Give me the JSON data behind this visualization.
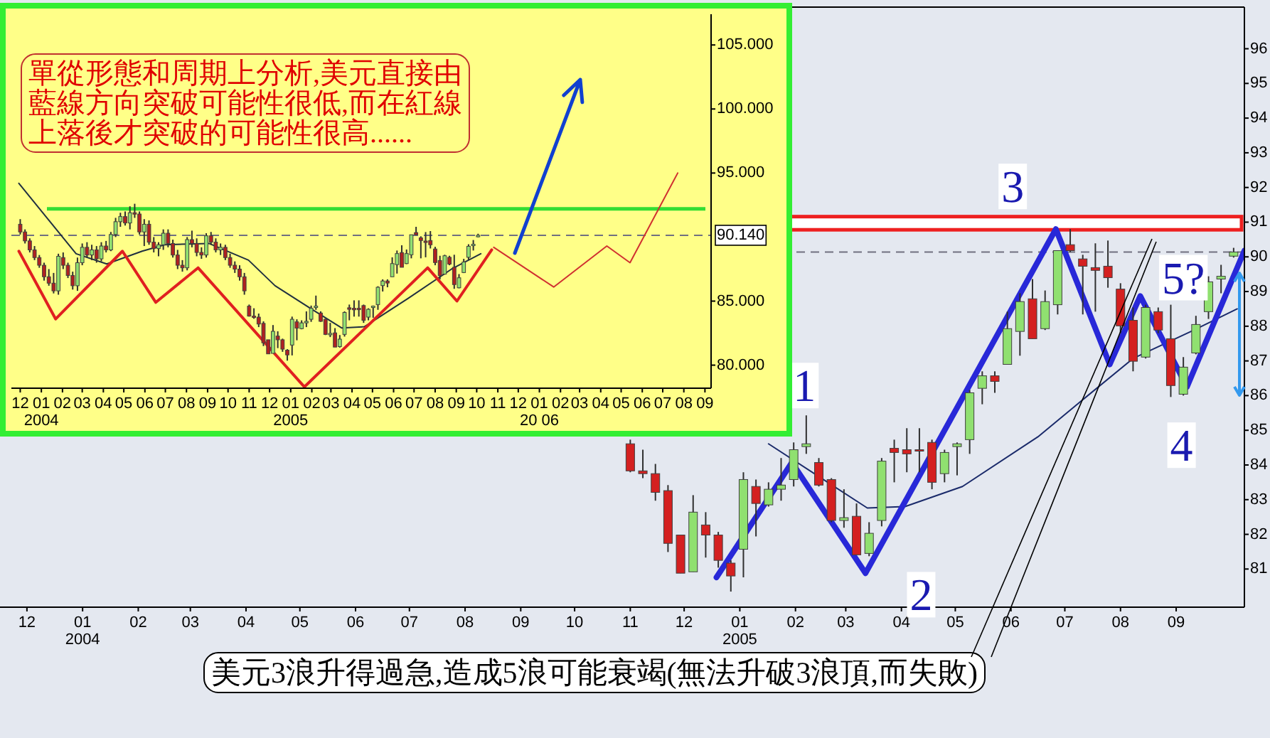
{
  "chart_data": [
    {
      "type": "candlestick",
      "x": [
        "2004-11-01",
        "2004-11-08",
        "2004-11-15",
        "2004-11-22",
        "2004-11-29",
        "2004-12-06",
        "2004-12-13",
        "2004-12-20",
        "2004-12-27",
        "2005-01-03",
        "2005-01-10",
        "2005-01-17",
        "2005-01-24",
        "2005-01-31",
        "2005-02-07",
        "2005-02-14",
        "2005-02-21",
        "2005-02-28",
        "2005-03-07",
        "2005-03-14",
        "2005-03-21",
        "2005-03-28",
        "2005-04-04",
        "2005-04-11",
        "2005-04-18",
        "2005-04-25",
        "2005-05-02",
        "2005-05-09",
        "2005-05-16",
        "2005-05-23",
        "2005-05-30",
        "2005-06-06",
        "2005-06-13",
        "2005-06-20",
        "2005-06-27",
        "2005-07-04",
        "2005-07-11",
        "2005-07-18",
        "2005-07-25",
        "2005-08-01",
        "2005-08-08",
        "2005-08-15",
        "2005-08-22",
        "2005-08-29",
        "2005-09-05",
        "2005-09-12",
        "2005-09-19",
        "2005-09-26",
        "2005-10-03"
      ],
      "ohlc": [
        [
          84.61,
          84.73,
          83.79,
          83.83
        ],
        [
          83.83,
          84.44,
          83.62,
          83.75
        ],
        [
          83.75,
          84.03,
          82.97,
          83.21
        ],
        [
          83.26,
          83.42,
          81.49,
          81.74
        ],
        [
          81.98,
          81.98,
          80.88,
          80.88
        ],
        [
          80.92,
          83.13,
          80.92,
          82.64
        ],
        [
          82.27,
          82.64,
          81.33,
          81.98
        ],
        [
          81.98,
          82.07,
          81.04,
          81.25
        ],
        [
          81.17,
          81.25,
          80.35,
          80.8
        ],
        [
          81.57,
          83.79,
          80.76,
          83.58
        ],
        [
          83.38,
          83.58,
          81.94,
          82.89
        ],
        [
          82.85,
          83.5,
          82.8,
          83.3
        ],
        [
          83.3,
          84.2,
          82.97,
          83.42
        ],
        [
          83.58,
          84.65,
          83.38,
          84.44
        ],
        [
          84.53,
          85.43,
          84.32,
          84.61
        ],
        [
          84.07,
          84.2,
          83.38,
          83.42
        ],
        [
          83.58,
          83.62,
          82.35,
          82.4
        ],
        [
          82.4,
          83.3,
          82.19,
          82.48
        ],
        [
          82.52,
          82.89,
          81.41,
          81.41
        ],
        [
          81.45,
          82.35,
          81.37,
          82.03
        ],
        [
          82.4,
          84.2,
          82.23,
          84.11
        ],
        [
          84.48,
          84.73,
          83.5,
          84.36
        ],
        [
          84.44,
          85.06,
          83.79,
          84.32
        ],
        [
          84.44,
          85.06,
          83.79,
          84.4
        ],
        [
          84.65,
          84.73,
          83.3,
          83.5
        ],
        [
          83.75,
          84.44,
          83.5,
          84.36
        ],
        [
          84.53,
          84.65,
          83.7,
          84.61
        ],
        [
          84.73,
          86.16,
          84.32,
          86.08
        ],
        [
          86.21,
          86.7,
          85.75,
          86.57
        ],
        [
          86.57,
          86.7,
          86.08,
          86.41
        ],
        [
          86.9,
          88.42,
          86.9,
          87.93
        ],
        [
          87.85,
          88.95,
          87.15,
          88.71
        ],
        [
          88.79,
          89.36,
          87.64,
          87.64
        ],
        [
          87.93,
          89.03,
          87.89,
          88.71
        ],
        [
          88.62,
          90.18,
          88.34,
          90.18
        ],
        [
          90.35,
          90.8,
          90.14,
          90.18
        ],
        [
          89.94,
          90.06,
          88.34,
          89.73
        ],
        [
          89.69,
          90.39,
          88.42,
          89.61
        ],
        [
          89.73,
          90.47,
          89.11,
          89.4
        ],
        [
          89.07,
          89.24,
          87.8,
          88.01
        ],
        [
          88.17,
          88.54,
          86.7,
          86.99
        ],
        [
          87.11,
          88.62,
          87.07,
          88.54
        ],
        [
          88.42,
          88.54,
          87.8,
          87.89
        ],
        [
          87.64,
          88.62,
          85.96,
          86.29
        ],
        [
          86.04,
          87.11,
          86.0,
          86.82
        ],
        [
          87.23,
          88.3,
          87.19,
          88.05
        ],
        [
          88.42,
          89.44,
          88.21,
          89.28
        ],
        [
          89.36,
          89.77,
          88.95,
          89.44
        ],
        [
          90.02,
          90.26,
          89.98,
          90.14
        ]
      ],
      "series": [
        {
          "type": "line",
          "color": "#1a2a6a",
          "x": [
            "2005-01-17",
            "2005-02-13",
            "2005-03-13",
            "2005-04-03",
            "2005-05-05",
            "2005-06-16",
            "2005-07-10",
            "2005-08-08",
            "2005-09-11",
            "2005-10-05"
          ],
          "values": [
            84.61,
            83.7,
            82.76,
            82.8,
            83.38,
            84.81,
            85.84,
            87.07,
            87.89,
            88.5
          ]
        },
        {
          "type": "line",
          "color": "#2828d8",
          "x": [
            "2004-12-19",
            "2005-01-30",
            "2005-03-12",
            "2005-06-26",
            "2005-07-26",
            "2005-08-12",
            "2005-09-07",
            "2005-10-09"
          ],
          "values": [
            80.76,
            84.07,
            80.88,
            90.8,
            86.9,
            88.87,
            86.25,
            90.18
          ]
        }
      ],
      "xlim": [
        "2003-11-16",
        "2005-10-09"
      ],
      "ylim": [
        79.9,
        97.2
      ],
      "xticks": [
        {
          "value": "2003-12-01",
          "label": "12"
        },
        {
          "value": "2004-01-01",
          "label": "01\n2004"
        },
        {
          "value": "2004-02-01",
          "label": "02"
        },
        {
          "value": "2004-03-01",
          "label": "03"
        },
        {
          "value": "2004-04-01",
          "label": "04"
        },
        {
          "value": "2004-05-01",
          "label": "05"
        },
        {
          "value": "2004-06-01",
          "label": "06"
        },
        {
          "value": "2004-07-01",
          "label": "07"
        },
        {
          "value": "2004-08-01",
          "label": "08"
        },
        {
          "value": "2004-09-01",
          "label": "09"
        },
        {
          "value": "2004-10-01",
          "label": "10"
        },
        {
          "value": "2004-11-01",
          "label": "11"
        },
        {
          "value": "2004-12-01",
          "label": "12"
        },
        {
          "value": "2005-01-01",
          "label": "01\n2005"
        },
        {
          "value": "2005-02-01",
          "label": "02"
        },
        {
          "value": "2005-03-01",
          "label": "03"
        },
        {
          "value": "2005-04-01",
          "label": "04"
        },
        {
          "value": "2005-05-01",
          "label": "05"
        },
        {
          "value": "2005-06-01",
          "label": "06"
        },
        {
          "value": "2005-07-01",
          "label": "07"
        },
        {
          "value": "2005-08-01",
          "label": "08"
        },
        {
          "value": "2005-09-01",
          "label": "09"
        }
      ],
      "yticks": [
        96,
        95,
        94,
        93,
        92,
        91,
        90,
        89,
        88,
        87,
        86,
        85,
        84,
        83,
        82,
        81
      ],
      "ref_lines": [
        {
          "axis": "y",
          "value": 90.14,
          "color": "#707080",
          "line_style": "dashed"
        }
      ],
      "bands": [
        {
          "axis": "y",
          "from": 90.78,
          "to": 91.16,
          "color": "#ee2020"
        }
      ],
      "annotations": [
        {
          "text": "1",
          "x": "2005-02-06",
          "y": 86.29
        },
        {
          "text": "2",
          "x": "2005-04-12",
          "y": 80.26
        },
        {
          "text": "3",
          "x": "2005-06-02",
          "y": 92.03
        },
        {
          "text": "4",
          "x": "2005-09-04",
          "y": 84.57
        },
        {
          "text": "5?",
          "x": "2005-09-05",
          "y": 89.4
        },
        "美元3浪升得過急,造成5浪可能衰竭(無法升破3浪頂,而失敗)"
      ]
    },
    {
      "type": "candlestick",
      "x": [
        "2003-12-01",
        "2003-12-08",
        "2003-12-15",
        "2003-12-22",
        "2003-12-29",
        "2004-01-05",
        "2004-01-12",
        "2004-01-19",
        "2004-01-26",
        "2004-02-02",
        "2004-02-09",
        "2004-02-16",
        "2004-02-23",
        "2004-03-01",
        "2004-03-08",
        "2004-03-15",
        "2004-03-22",
        "2004-03-29",
        "2004-04-05",
        "2004-04-12",
        "2004-04-19",
        "2004-04-26",
        "2004-05-03",
        "2004-05-10",
        "2004-05-17",
        "2004-05-24",
        "2004-05-31",
        "2004-06-07",
        "2004-06-14",
        "2004-06-21",
        "2004-06-28",
        "2004-07-05",
        "2004-07-12",
        "2004-07-19",
        "2004-07-26",
        "2004-08-02",
        "2004-08-09",
        "2004-08-16",
        "2004-08-23",
        "2004-08-30",
        "2004-09-06",
        "2004-09-13",
        "2004-09-20",
        "2004-09-27",
        "2004-10-04",
        "2004-10-11",
        "2004-10-18",
        "2004-10-25",
        "2004-11-01",
        "2004-11-08",
        "2004-11-15",
        "2004-11-22",
        "2004-11-29",
        "2004-12-06",
        "2004-12-13",
        "2004-12-20",
        "2004-12-27",
        "2005-01-03",
        "2005-01-10",
        "2005-01-17",
        "2005-01-24",
        "2005-01-31",
        "2005-02-07",
        "2005-02-14",
        "2005-02-21",
        "2005-02-28",
        "2005-03-07",
        "2005-03-14",
        "2005-03-21",
        "2005-03-28",
        "2005-04-04",
        "2005-04-11",
        "2005-04-18",
        "2005-04-25",
        "2005-05-02",
        "2005-05-09",
        "2005-05-16",
        "2005-05-23",
        "2005-05-30",
        "2005-06-06",
        "2005-06-13",
        "2005-06-20",
        "2005-06-27",
        "2005-07-04",
        "2005-07-11",
        "2005-07-18",
        "2005-07-25",
        "2005-08-01",
        "2005-08-08",
        "2005-08-15",
        "2005-08-22",
        "2005-08-29",
        "2005-09-05",
        "2005-09-12",
        "2005-09-19",
        "2005-09-26",
        "2005-10-03"
      ],
      "ohlc": [
        [
          91.0,
          91.4,
          90.2,
          90.4
        ],
        [
          90.4,
          90.6,
          89.5,
          89.7
        ],
        [
          89.7,
          89.9,
          88.8,
          89.0
        ],
        [
          89.0,
          89.3,
          88.2,
          88.4
        ],
        [
          88.4,
          88.6,
          87.6,
          87.8
        ],
        [
          87.8,
          88.0,
          86.6,
          86.9
        ],
        [
          86.9,
          87.5,
          86.2,
          86.4
        ],
        [
          86.4,
          87.2,
          85.6,
          85.8
        ],
        [
          85.8,
          88.7,
          85.5,
          88.5
        ],
        [
          88.4,
          88.8,
          87.5,
          87.8
        ],
        [
          87.8,
          88.0,
          86.8,
          87.0
        ],
        [
          87.0,
          87.3,
          85.9,
          86.2
        ],
        [
          86.2,
          88.4,
          85.8,
          88.0
        ],
        [
          88.0,
          89.5,
          87.8,
          89.2
        ],
        [
          89.2,
          89.6,
          88.4,
          88.6
        ],
        [
          88.6,
          89.4,
          88.2,
          89.0
        ],
        [
          89.0,
          89.3,
          88.0,
          88.3
        ],
        [
          88.3,
          89.6,
          88.1,
          89.3
        ],
        [
          89.3,
          89.7,
          88.8,
          89.0
        ],
        [
          89.0,
          90.4,
          88.9,
          90.2
        ],
        [
          90.2,
          91.5,
          90.0,
          91.2
        ],
        [
          91.2,
          91.9,
          90.8,
          91.6
        ],
        [
          91.6,
          92.0,
          90.9,
          91.1
        ],
        [
          91.1,
          92.4,
          90.6,
          91.9
        ],
        [
          91.9,
          92.6,
          91.5,
          91.8
        ],
        [
          91.8,
          92.0,
          90.2,
          90.4
        ],
        [
          90.4,
          91.4,
          89.3,
          91.0
        ],
        [
          91.0,
          91.3,
          89.4,
          89.6
        ],
        [
          89.6,
          90.0,
          88.8,
          89.1
        ],
        [
          89.1,
          89.6,
          88.5,
          89.4
        ],
        [
          89.4,
          90.6,
          89.0,
          90.3
        ],
        [
          90.3,
          90.6,
          89.2,
          89.5
        ],
        [
          89.5,
          89.8,
          88.4,
          88.6
        ],
        [
          88.6,
          89.0,
          87.5,
          87.8
        ],
        [
          87.8,
          88.2,
          87.3,
          87.6
        ],
        [
          87.6,
          90.0,
          87.4,
          89.8
        ],
        [
          89.8,
          90.5,
          89.2,
          89.5
        ],
        [
          89.5,
          89.9,
          88.5,
          88.8
        ],
        [
          88.8,
          89.2,
          88.3,
          88.6
        ],
        [
          88.6,
          90.3,
          88.4,
          90.1
        ],
        [
          90.1,
          90.4,
          89.4,
          89.6
        ],
        [
          89.6,
          89.9,
          88.8,
          89.0
        ],
        [
          89.0,
          89.5,
          88.6,
          89.2
        ],
        [
          89.2,
          89.4,
          88.2,
          88.4
        ],
        [
          88.4,
          88.7,
          87.6,
          87.8
        ],
        [
          87.8,
          88.1,
          87.2,
          87.5
        ],
        [
          87.5,
          87.8,
          86.6,
          86.9
        ],
        [
          86.9,
          87.2,
          85.5,
          85.8
        ],
        [
          84.61,
          84.73,
          83.79,
          83.83
        ],
        [
          83.83,
          84.44,
          83.62,
          83.75
        ],
        [
          83.75,
          84.03,
          82.97,
          83.21
        ],
        [
          83.26,
          83.42,
          81.49,
          81.74
        ],
        [
          81.98,
          81.98,
          80.88,
          80.88
        ],
        [
          80.92,
          83.13,
          80.92,
          82.64
        ],
        [
          82.27,
          82.64,
          81.33,
          81.98
        ],
        [
          81.98,
          82.07,
          81.04,
          81.25
        ],
        [
          81.17,
          81.25,
          80.35,
          80.8
        ],
        [
          81.57,
          83.79,
          80.76,
          83.58
        ],
        [
          83.38,
          83.58,
          81.94,
          82.89
        ],
        [
          82.85,
          83.5,
          82.8,
          83.3
        ],
        [
          83.3,
          84.2,
          82.97,
          83.42
        ],
        [
          83.58,
          84.65,
          83.38,
          84.44
        ],
        [
          84.53,
          85.43,
          84.32,
          84.61
        ],
        [
          84.07,
          84.2,
          83.38,
          83.42
        ],
        [
          83.58,
          83.62,
          82.35,
          82.4
        ],
        [
          82.4,
          83.3,
          82.19,
          82.48
        ],
        [
          82.52,
          82.89,
          81.41,
          81.41
        ],
        [
          81.45,
          82.35,
          81.37,
          82.03
        ],
        [
          82.4,
          84.2,
          82.23,
          84.11
        ],
        [
          84.48,
          84.73,
          83.5,
          84.36
        ],
        [
          84.44,
          85.06,
          83.79,
          84.32
        ],
        [
          84.44,
          85.06,
          83.79,
          84.4
        ],
        [
          84.65,
          84.73,
          83.3,
          83.5
        ],
        [
          83.75,
          84.44,
          83.5,
          84.36
        ],
        [
          84.53,
          84.65,
          83.7,
          84.61
        ],
        [
          84.73,
          86.16,
          84.32,
          86.08
        ],
        [
          86.21,
          86.7,
          85.75,
          86.57
        ],
        [
          86.57,
          86.7,
          86.08,
          86.41
        ],
        [
          86.9,
          88.42,
          86.9,
          87.93
        ],
        [
          87.85,
          88.95,
          87.15,
          88.71
        ],
        [
          88.79,
          89.36,
          87.64,
          87.64
        ],
        [
          87.93,
          89.03,
          87.89,
          88.71
        ],
        [
          88.62,
          90.18,
          88.34,
          90.18
        ],
        [
          90.35,
          90.8,
          90.14,
          90.18
        ],
        [
          89.94,
          90.06,
          88.34,
          89.73
        ],
        [
          89.69,
          90.39,
          88.42,
          89.61
        ],
        [
          89.73,
          90.47,
          89.11,
          89.4
        ],
        [
          89.07,
          89.24,
          87.8,
          88.01
        ],
        [
          88.17,
          88.54,
          86.7,
          86.99
        ],
        [
          87.11,
          88.62,
          87.07,
          88.54
        ],
        [
          88.42,
          88.54,
          87.8,
          87.89
        ],
        [
          87.64,
          88.62,
          85.96,
          86.29
        ],
        [
          86.04,
          87.11,
          86.0,
          86.82
        ],
        [
          87.23,
          88.3,
          87.19,
          88.05
        ],
        [
          88.42,
          89.44,
          88.21,
          89.28
        ],
        [
          89.36,
          89.77,
          88.95,
          89.44
        ],
        [
          90.02,
          90.26,
          89.98,
          90.14
        ]
      ],
      "series": [
        {
          "type": "line",
          "color": "#203040",
          "x": [
            "2003-11-29",
            "2004-02-21",
            "2004-04-06",
            "2004-05-28",
            "2004-06-30",
            "2004-09-03",
            "2004-10-31",
            "2004-12-09",
            "2005-01-31",
            "2005-03-17",
            "2005-04-19",
            "2005-06-22",
            "2005-08-25",
            "2005-10-07"
          ],
          "values": [
            94.2,
            88.7,
            87.9,
            88.9,
            89.4,
            89.5,
            88.2,
            86.2,
            84.4,
            82.9,
            83.0,
            85.2,
            87.5,
            88.7
          ]
        },
        {
          "type": "line",
          "color": "#e02020",
          "x": [
            "2003-11-29",
            "2004-01-22",
            "2004-04-29",
            "2004-06-17",
            "2004-08-18",
            "2005-01-21",
            "2005-07-21",
            "2005-09-02",
            "2005-10-23"
          ],
          "values": [
            88.9,
            83.6,
            88.9,
            84.9,
            87.6,
            78.3,
            87.6,
            85.0,
            89.0
          ]
        },
        {
          "type": "line",
          "color": "#d03030",
          "x": [
            "2005-10-26",
            "2006-01-22",
            "2006-04-10",
            "2006-05-14",
            "2006-07-23"
          ],
          "values": [
            89.2,
            86.1,
            89.3,
            88.0,
            95.0
          ]
        }
      ],
      "xlim": [
        "2003-11-18",
        "2006-09-10"
      ],
      "ylim": [
        78.2,
        107.4
      ],
      "xticks": [
        {
          "value": "2003-12-01",
          "label": "12"
        },
        {
          "value": "2004-01-01",
          "label": "01\n2004"
        },
        {
          "value": "2004-02-01",
          "label": "02"
        },
        {
          "value": "2004-03-01",
          "label": "03"
        },
        {
          "value": "2004-04-01",
          "label": "04"
        },
        {
          "value": "2004-05-01",
          "label": "05"
        },
        {
          "value": "2004-06-01",
          "label": "06"
        },
        {
          "value": "2004-07-01",
          "label": "07"
        },
        {
          "value": "2004-08-01",
          "label": "08"
        },
        {
          "value": "2004-09-01",
          "label": "09"
        },
        {
          "value": "2004-10-01",
          "label": "10"
        },
        {
          "value": "2004-11-01",
          "label": "11"
        },
        {
          "value": "2004-12-01",
          "label": "12"
        },
        {
          "value": "2005-01-01",
          "label": "01\n2005"
        },
        {
          "value": "2005-02-01",
          "label": "02"
        },
        {
          "value": "2005-03-01",
          "label": "03"
        },
        {
          "value": "2005-04-01",
          "label": "04"
        },
        {
          "value": "2005-05-01",
          "label": "05"
        },
        {
          "value": "2005-06-01",
          "label": "06"
        },
        {
          "value": "2005-07-01",
          "label": "07"
        },
        {
          "value": "2005-08-01",
          "label": "08"
        },
        {
          "value": "2005-09-01",
          "label": "09"
        },
        {
          "value": "2005-10-01",
          "label": "10"
        },
        {
          "value": "2005-11-01",
          "label": "11"
        },
        {
          "value": "2005-12-01",
          "label": "12"
        },
        {
          "value": "2006-01-01",
          "label": "01\n20 06"
        },
        {
          "value": "2006-02-01",
          "label": "02"
        },
        {
          "value": "2006-03-01",
          "label": "03"
        },
        {
          "value": "2006-04-01",
          "label": "04"
        },
        {
          "value": "2006-05-01",
          "label": "05"
        },
        {
          "value": "2006-06-01",
          "label": "06"
        },
        {
          "value": "2006-07-01",
          "label": "07"
        },
        {
          "value": "2006-08-01",
          "label": "08"
        },
        {
          "value": "2006-09-01",
          "label": "09"
        }
      ],
      "yticks": [
        {
          "value": 80,
          "label": "80.000"
        },
        {
          "value": 85,
          "label": "85.000"
        },
        {
          "value": 95,
          "label": "95.000"
        },
        {
          "value": 100,
          "label": "100.000"
        },
        {
          "value": 105,
          "label": "105.000"
        }
      ],
      "ref_lines": [
        {
          "axis": "y",
          "value": 92.2,
          "color": "#33dd33"
        },
        {
          "axis": "y",
          "value": 90.14,
          "color": "#707080",
          "line_style": "dashed",
          "label": "90.140"
        }
      ],
      "annotations": [
        "單從形態和周期上分析,美元直接由藍線方向突破可能性很低,而在紅線上落後才突破的可能性很高......"
      ]
    }
  ]
}
